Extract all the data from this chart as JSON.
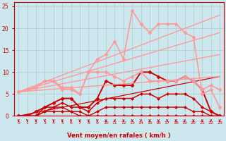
{
  "bg_color": "#cce8ee",
  "grid_color": "#aacccc",
  "xlabel": "Vent moyen/en rafales ( km/h )",
  "xlabel_color": "#cc0000",
  "tick_color": "#cc0000",
  "xlim": [
    -0.5,
    23.5
  ],
  "ylim": [
    0,
    26
  ],
  "yticks": [
    0,
    5,
    10,
    15,
    20,
    25
  ],
  "xticks": [
    0,
    1,
    2,
    3,
    4,
    5,
    6,
    7,
    8,
    9,
    10,
    11,
    12,
    13,
    14,
    15,
    16,
    17,
    18,
    19,
    20,
    21,
    22,
    23
  ],
  "series": [
    {
      "x": [
        0,
        1,
        2,
        3,
        4,
        5,
        6,
        7,
        8,
        9,
        10,
        11,
        12,
        13,
        14,
        15,
        16,
        17,
        18,
        19,
        20,
        21,
        22,
        23
      ],
      "y": [
        0,
        0,
        0,
        1,
        1,
        1,
        1,
        0,
        0,
        0,
        0,
        0,
        0,
        0,
        0,
        0,
        0,
        0,
        0,
        0,
        0,
        0,
        0,
        0
      ],
      "color": "#cc0000",
      "lw": 1.0,
      "marker": "D",
      "ms": 2.0
    },
    {
      "x": [
        0,
        1,
        2,
        3,
        4,
        5,
        6,
        7,
        8,
        9,
        10,
        11,
        12,
        13,
        14,
        15,
        16,
        17,
        18,
        19,
        20,
        21,
        22,
        23
      ],
      "y": [
        0,
        0,
        0,
        1,
        2,
        2,
        1,
        1,
        0,
        1,
        2,
        2,
        2,
        2,
        2,
        2,
        2,
        2,
        2,
        2,
        1,
        1,
        0,
        0
      ],
      "color": "#cc0000",
      "lw": 1.0,
      "marker": "D",
      "ms": 2.0
    },
    {
      "x": [
        0,
        1,
        2,
        3,
        4,
        5,
        6,
        7,
        8,
        9,
        10,
        11,
        12,
        13,
        14,
        15,
        16,
        17,
        18,
        19,
        20,
        21,
        22,
        23
      ],
      "y": [
        0,
        0,
        0,
        2,
        2,
        3,
        2,
        2,
        1,
        3,
        4,
        4,
        4,
        4,
        5,
        5,
        4,
        5,
        5,
        5,
        4,
        2,
        1,
        0
      ],
      "color": "#cc0000",
      "lw": 1.1,
      "marker": "D",
      "ms": 2.0
    },
    {
      "x": [
        0,
        1,
        2,
        3,
        4,
        5,
        6,
        7,
        8,
        9,
        10,
        11,
        12,
        13,
        14,
        15,
        16,
        17,
        18,
        19,
        20,
        21,
        22,
        23
      ],
      "y": [
        0,
        0,
        1,
        2,
        3,
        4,
        4,
        2,
        2,
        4,
        8,
        7,
        7,
        7,
        10,
        10,
        9,
        8,
        8,
        9,
        8,
        6,
        1,
        0
      ],
      "color": "#cc0000",
      "lw": 1.4,
      "marker": "D",
      "ms": 2.5
    },
    {
      "x": [
        0,
        23
      ],
      "y": [
        0,
        9
      ],
      "color": "#cc0000",
      "lw": 0.9,
      "marker": null,
      "ms": 0
    },
    {
      "x": [
        0,
        1,
        2,
        3,
        4,
        5,
        6,
        7,
        8,
        9,
        10,
        11,
        12,
        13,
        14,
        15,
        16,
        17,
        18,
        19,
        20,
        21,
        22,
        23
      ],
      "y": [
        5.5,
        6,
        6.5,
        8,
        8,
        6.5,
        6.5,
        5,
        10,
        13,
        14,
        17,
        13,
        24,
        21,
        19,
        21,
        21,
        21,
        19,
        18,
        5,
        6,
        2
      ],
      "color": "#ff9999",
      "lw": 1.2,
      "marker": "D",
      "ms": 2.5
    },
    {
      "x": [
        0,
        1,
        2,
        3,
        4,
        5,
        6,
        7,
        8,
        9,
        10,
        11,
        12,
        13,
        14,
        15,
        16,
        17,
        18,
        19,
        20,
        21,
        22,
        23
      ],
      "y": [
        5.5,
        6,
        6.5,
        8,
        8,
        6,
        6,
        5,
        10,
        10,
        10,
        9,
        8,
        9,
        10,
        8,
        8,
        8,
        8,
        9,
        8,
        6,
        7,
        6
      ],
      "color": "#ff9999",
      "lw": 1.2,
      "marker": "D",
      "ms": 2.5
    },
    {
      "x": [
        0,
        23
      ],
      "y": [
        5.5,
        23
      ],
      "color": "#ff9999",
      "lw": 1.0,
      "marker": null,
      "ms": 0
    },
    {
      "x": [
        0,
        23
      ],
      "y": [
        5.5,
        19
      ],
      "color": "#ff9999",
      "lw": 1.0,
      "marker": null,
      "ms": 0
    },
    {
      "x": [
        0,
        23
      ],
      "y": [
        5.5,
        14
      ],
      "color": "#ff9999",
      "lw": 1.0,
      "marker": null,
      "ms": 0
    },
    {
      "x": [
        0,
        23
      ],
      "y": [
        5.5,
        9
      ],
      "color": "#ff9999",
      "lw": 1.0,
      "marker": null,
      "ms": 0
    }
  ]
}
